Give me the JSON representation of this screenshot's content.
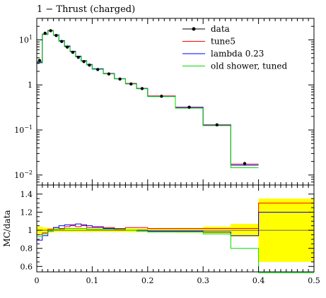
{
  "chart_data": {
    "type": "line",
    "title": "1 − Thrust (charged)",
    "bin_edges": [
      0,
      0.01,
      0.02,
      0.03,
      0.04,
      0.05,
      0.06,
      0.07,
      0.08,
      0.09,
      0.1,
      0.12,
      0.14,
      0.16,
      0.18,
      0.2,
      0.25,
      0.3,
      0.35,
      0.4
    ],
    "main": {
      "yscale": "log",
      "ylim": [
        0.006,
        30
      ],
      "ytick_labels": [
        {
          "base": "10",
          "exp": "1",
          "value": 10
        },
        {
          "base": "1",
          "exp": "",
          "value": 1
        },
        {
          "base": "10",
          "exp": "−1",
          "value": 0.1
        },
        {
          "base": "10",
          "exp": "−2",
          "value": 0.01
        }
      ],
      "data": {
        "name": "data",
        "x": [
          0.005,
          0.015,
          0.025,
          0.035,
          0.045,
          0.055,
          0.065,
          0.075,
          0.085,
          0.095,
          0.11,
          0.13,
          0.15,
          0.17,
          0.19,
          0.225,
          0.275,
          0.325,
          0.375
        ],
        "y": [
          3.5,
          14.0,
          16.0,
          12.5,
          9.2,
          6.9,
          5.3,
          4.1,
          3.3,
          2.75,
          2.2,
          1.75,
          1.35,
          1.05,
          0.83,
          0.56,
          0.32,
          0.13,
          0.018
        ]
      },
      "series": [
        {
          "name": "tune5",
          "color": "#ff0000",
          "values": [
            3.3,
            13.5,
            16.2,
            12.8,
            9.4,
            7.1,
            5.5,
            4.2,
            3.4,
            2.8,
            2.25,
            1.8,
            1.38,
            1.08,
            0.84,
            0.57,
            0.32,
            0.13,
            0.0175
          ]
        },
        {
          "name": "lambda 0.23",
          "color": "#0000ff",
          "values": [
            3.1,
            13.2,
            15.9,
            12.9,
            9.6,
            7.3,
            5.6,
            4.35,
            3.45,
            2.85,
            2.28,
            1.78,
            1.37,
            1.06,
            0.83,
            0.555,
            0.315,
            0.128,
            0.0165
          ]
        },
        {
          "name": "old shower, tuned",
          "color": "#00dd00",
          "values": [
            3.2,
            13.4,
            15.8,
            12.6,
            9.3,
            7.0,
            5.4,
            4.2,
            3.35,
            2.78,
            2.22,
            1.76,
            1.36,
            1.05,
            0.82,
            0.55,
            0.305,
            0.125,
            0.0145
          ]
        }
      ]
    },
    "ratio": {
      "ylabel": "MC/data",
      "ylim": [
        0.54,
        1.5
      ],
      "yticks": [
        0.6,
        0.8,
        1.0,
        1.2,
        1.4
      ],
      "ytick_labels": [
        "0.6",
        "0.8",
        "1",
        "1.2",
        "1.4"
      ],
      "band_color": "#ffff00",
      "band_upper": [
        1.04,
        1.03,
        1.025,
        1.02,
        1.02,
        1.02,
        1.02,
        1.02,
        1.02,
        1.02,
        1.02,
        1.02,
        1.02,
        1.02,
        1.02,
        1.02,
        1.025,
        1.04,
        1.07,
        1.35
      ],
      "band_lower": [
        0.96,
        0.97,
        0.975,
        0.98,
        0.98,
        0.98,
        0.98,
        0.98,
        0.98,
        0.98,
        0.98,
        0.98,
        0.98,
        0.98,
        0.98,
        0.98,
        0.975,
        0.96,
        0.93,
        0.65
      ],
      "band_edges": [
        0,
        0.01,
        0.02,
        0.03,
        0.04,
        0.05,
        0.06,
        0.07,
        0.08,
        0.09,
        0.1,
        0.12,
        0.14,
        0.16,
        0.18,
        0.2,
        0.25,
        0.3,
        0.35,
        0.4,
        0.5
      ],
      "series": [
        {
          "name": "tune5",
          "color": "#ff0000",
          "values": [
            0.95,
            0.97,
            1.01,
            1.03,
            1.02,
            1.04,
            1.05,
            1.04,
            1.05,
            1.03,
            1.03,
            1.03,
            1.02,
            1.03,
            1.03,
            1.02,
            1.02,
            1.02,
            1.02,
            1.3
          ]
        },
        {
          "name": "lambda 0.23",
          "color": "#0000ff",
          "values": [
            0.89,
            0.94,
            0.99,
            1.03,
            1.05,
            1.06,
            1.06,
            1.07,
            1.06,
            1.05,
            1.04,
            1.02,
            1.01,
            1.0,
            1.0,
            0.99,
            0.99,
            0.98,
            0.94,
            1.2
          ]
        },
        {
          "name": "old shower, tuned",
          "color": "#00dd00",
          "values": [
            0.93,
            0.96,
            0.99,
            1.01,
            1.01,
            1.02,
            1.02,
            1.02,
            1.02,
            1.01,
            1.01,
            1.01,
            1.01,
            1.0,
            0.99,
            0.98,
            0.98,
            0.96,
            0.8,
            0.53
          ]
        }
      ]
    },
    "x_axis": {
      "xlim": [
        0,
        0.5
      ],
      "ticks": [
        0,
        0.1,
        0.2,
        0.3,
        0.4,
        0.5
      ],
      "tick_labels": [
        "0",
        "0.1",
        "0.2",
        "0.3",
        "0.4",
        "0.5"
      ]
    },
    "legend": {
      "placement": "top-right",
      "entries": [
        {
          "label": "data",
          "color": "#000000",
          "marker": true
        },
        {
          "label": "tune5",
          "color": "#ff0000",
          "marker": false
        },
        {
          "label": "lambda 0.23",
          "color": "#0000ff",
          "marker": false
        },
        {
          "label": "old shower, tuned",
          "color": "#00dd00",
          "marker": false
        }
      ]
    }
  }
}
